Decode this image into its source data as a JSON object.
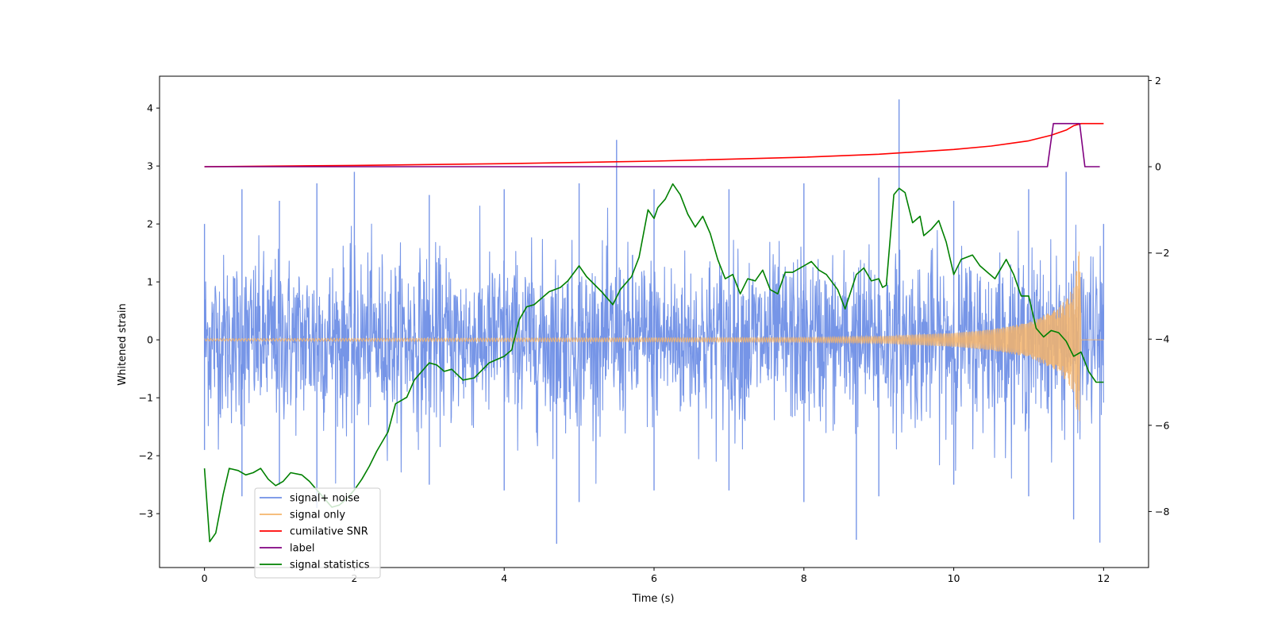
{
  "chart_data": {
    "type": "line",
    "xlabel": "Time (s)",
    "ylabel": "Whitened strain",
    "ylabel_right": "",
    "xlim": [
      -0.6,
      12.6
    ],
    "ylim": [
      -3.93,
      4.55
    ],
    "ylim_right": [
      -9.3,
      2.1
    ],
    "xticks": [
      0,
      2,
      4,
      6,
      8,
      10,
      12
    ],
    "yticks": [
      -3,
      -2,
      -1,
      0,
      1,
      2,
      3,
      4
    ],
    "yticks_right": [
      -8,
      -6,
      -4,
      -2,
      0,
      2
    ],
    "legend_placement": "lower-left",
    "grid": false,
    "series": [
      {
        "name": "signal+ noise",
        "axis": "left",
        "color": "#6f8fe6",
        "t_start": 0,
        "t_end": 12,
        "envelope_upper": [
          [
            0,
            2.0
          ],
          [
            0.5,
            2.6
          ],
          [
            1,
            2.4
          ],
          [
            1.5,
            2.7
          ],
          [
            2,
            2.9
          ],
          [
            3,
            2.5
          ],
          [
            4,
            2.6
          ],
          [
            5,
            2.7
          ],
          [
            5.5,
            3.45
          ],
          [
            6,
            2.6
          ],
          [
            7,
            2.6
          ],
          [
            8,
            2.7
          ],
          [
            9,
            2.8
          ],
          [
            9.27,
            4.15
          ],
          [
            10,
            2.4
          ],
          [
            11,
            2.6
          ],
          [
            11.5,
            2.9
          ],
          [
            12,
            2.0
          ]
        ],
        "envelope_lower": [
          [
            0,
            -1.9
          ],
          [
            0.5,
            -2.7
          ],
          [
            1,
            -2.5
          ],
          [
            1.5,
            -2.9
          ],
          [
            2,
            -2.6
          ],
          [
            3,
            -2.5
          ],
          [
            4,
            -2.6
          ],
          [
            4.7,
            -3.52
          ],
          [
            5,
            -2.8
          ],
          [
            6,
            -2.6
          ],
          [
            7,
            -2.6
          ],
          [
            8,
            -2.8
          ],
          [
            8.7,
            -3.45
          ],
          [
            9,
            -2.7
          ],
          [
            10,
            -2.5
          ],
          [
            11,
            -2.7
          ],
          [
            11.6,
            -3.1
          ],
          [
            11.95,
            -3.5
          ]
        ]
      },
      {
        "name": "signal only",
        "axis": "left",
        "color": "#f4b46b",
        "t_start": 0,
        "t_end": 12,
        "amplitude": [
          [
            0,
            0.02
          ],
          [
            8,
            0.04
          ],
          [
            9,
            0.06
          ],
          [
            10,
            0.12
          ],
          [
            10.5,
            0.18
          ],
          [
            11,
            0.3
          ],
          [
            11.4,
            0.55
          ],
          [
            11.6,
            0.9
          ],
          [
            11.68,
            1.6
          ],
          [
            11.7,
            0.0
          ],
          [
            12,
            0.0
          ]
        ]
      },
      {
        "name": "cumilative SNR",
        "axis": "right",
        "color": "#ff0000",
        "points": [
          [
            0,
            0.0
          ],
          [
            2,
            0.03
          ],
          [
            4,
            0.07
          ],
          [
            6,
            0.13
          ],
          [
            8,
            0.22
          ],
          [
            9,
            0.29
          ],
          [
            10,
            0.4
          ],
          [
            10.5,
            0.48
          ],
          [
            11,
            0.6
          ],
          [
            11.3,
            0.73
          ],
          [
            11.5,
            0.85
          ],
          [
            11.6,
            0.95
          ],
          [
            11.7,
            1.0
          ],
          [
            12,
            1.0
          ]
        ]
      },
      {
        "name": "label",
        "axis": "right",
        "color": "#800080",
        "points": [
          [
            0,
            0
          ],
          [
            11.25,
            0
          ],
          [
            11.33,
            1
          ],
          [
            11.68,
            1
          ],
          [
            11.75,
            0
          ],
          [
            11.95,
            0
          ]
        ]
      },
      {
        "name": "signal statistics",
        "axis": "right",
        "color": "#008000",
        "points": [
          [
            0,
            -7.0
          ],
          [
            0.07,
            -8.7
          ],
          [
            0.15,
            -8.5
          ],
          [
            0.25,
            -7.6
          ],
          [
            0.33,
            -7.0
          ],
          [
            0.45,
            -7.05
          ],
          [
            0.55,
            -7.15
          ],
          [
            0.65,
            -7.1
          ],
          [
            0.75,
            -7.0
          ],
          [
            0.85,
            -7.25
          ],
          [
            0.95,
            -7.4
          ],
          [
            1.05,
            -7.3
          ],
          [
            1.15,
            -7.1
          ],
          [
            1.3,
            -7.15
          ],
          [
            1.4,
            -7.3
          ],
          [
            1.5,
            -7.5
          ],
          [
            1.6,
            -7.7
          ],
          [
            1.7,
            -7.9
          ],
          [
            1.8,
            -7.85
          ],
          [
            1.9,
            -7.7
          ],
          [
            2.0,
            -7.5
          ],
          [
            2.1,
            -7.25
          ],
          [
            2.2,
            -6.95
          ],
          [
            2.3,
            -6.6
          ],
          [
            2.45,
            -6.15
          ],
          [
            2.55,
            -5.5
          ],
          [
            2.7,
            -5.35
          ],
          [
            2.8,
            -4.95
          ],
          [
            2.9,
            -4.75
          ],
          [
            3.0,
            -4.55
          ],
          [
            3.1,
            -4.6
          ],
          [
            3.2,
            -4.75
          ],
          [
            3.3,
            -4.7
          ],
          [
            3.45,
            -4.95
          ],
          [
            3.6,
            -4.9
          ],
          [
            3.8,
            -4.55
          ],
          [
            4.0,
            -4.4
          ],
          [
            4.1,
            -4.25
          ],
          [
            4.2,
            -3.55
          ],
          [
            4.3,
            -3.25
          ],
          [
            4.4,
            -3.2
          ],
          [
            4.5,
            -3.05
          ],
          [
            4.6,
            -2.9
          ],
          [
            4.75,
            -2.8
          ],
          [
            4.85,
            -2.65
          ],
          [
            5.0,
            -2.3
          ],
          [
            5.1,
            -2.55
          ],
          [
            5.3,
            -2.9
          ],
          [
            5.45,
            -3.2
          ],
          [
            5.55,
            -2.85
          ],
          [
            5.7,
            -2.55
          ],
          [
            5.8,
            -2.1
          ],
          [
            5.92,
            -1.0
          ],
          [
            6.0,
            -1.2
          ],
          [
            6.05,
            -0.95
          ],
          [
            6.15,
            -0.75
          ],
          [
            6.25,
            -0.4
          ],
          [
            6.35,
            -0.65
          ],
          [
            6.45,
            -1.1
          ],
          [
            6.55,
            -1.4
          ],
          [
            6.65,
            -1.15
          ],
          [
            6.75,
            -1.55
          ],
          [
            6.85,
            -2.15
          ],
          [
            6.95,
            -2.6
          ],
          [
            7.05,
            -2.5
          ],
          [
            7.15,
            -2.95
          ],
          [
            7.25,
            -2.6
          ],
          [
            7.35,
            -2.65
          ],
          [
            7.45,
            -2.4
          ],
          [
            7.55,
            -2.85
          ],
          [
            7.65,
            -2.95
          ],
          [
            7.75,
            -2.45
          ],
          [
            7.85,
            -2.45
          ],
          [
            8.0,
            -2.3
          ],
          [
            8.1,
            -2.2
          ],
          [
            8.2,
            -2.4
          ],
          [
            8.3,
            -2.5
          ],
          [
            8.45,
            -2.85
          ],
          [
            8.55,
            -3.3
          ],
          [
            8.7,
            -2.5
          ],
          [
            8.8,
            -2.35
          ],
          [
            8.9,
            -2.65
          ],
          [
            9.0,
            -2.6
          ],
          [
            9.05,
            -2.8
          ],
          [
            9.1,
            -2.75
          ],
          [
            9.2,
            -0.65
          ],
          [
            9.27,
            -0.5
          ],
          [
            9.35,
            -0.6
          ],
          [
            9.45,
            -1.3
          ],
          [
            9.55,
            -1.15
          ],
          [
            9.6,
            -1.6
          ],
          [
            9.7,
            -1.45
          ],
          [
            9.8,
            -1.25
          ],
          [
            9.9,
            -1.75
          ],
          [
            10.0,
            -2.5
          ],
          [
            10.1,
            -2.15
          ],
          [
            10.25,
            -2.05
          ],
          [
            10.35,
            -2.3
          ],
          [
            10.45,
            -2.45
          ],
          [
            10.55,
            -2.6
          ],
          [
            10.7,
            -2.15
          ],
          [
            10.8,
            -2.5
          ],
          [
            10.9,
            -3.0
          ],
          [
            11.0,
            -3.0
          ],
          [
            11.1,
            -3.75
          ],
          [
            11.2,
            -3.95
          ],
          [
            11.3,
            -3.8
          ],
          [
            11.4,
            -3.85
          ],
          [
            11.5,
            -4.05
          ],
          [
            11.6,
            -4.4
          ],
          [
            11.7,
            -4.3
          ],
          [
            11.8,
            -4.75
          ],
          [
            11.9,
            -5.0
          ],
          [
            12.0,
            -5.0
          ]
        ]
      }
    ]
  }
}
